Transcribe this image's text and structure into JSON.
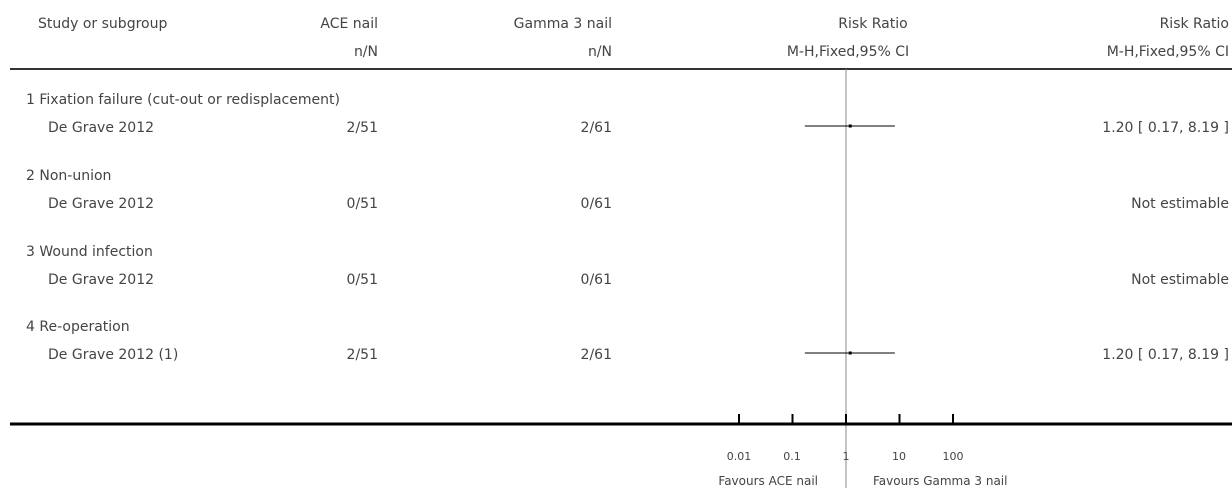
{
  "columns": {
    "study": "Study or subgroup",
    "group1": "ACE nail",
    "group1_sub": "n/N",
    "group2": "Gamma 3 nail",
    "group2_sub": "n/N",
    "plot": "Risk Ratio",
    "plot_sub": "M-H,Fixed,95% CI",
    "effect": "Risk Ratio",
    "effect_sub": "M-H,Fixed,95% CI"
  },
  "chart_data": {
    "type": "forest",
    "xscale": "log",
    "xlim": [
      0.01,
      100
    ],
    "ticks": [
      0.01,
      0.1,
      1,
      10,
      100
    ],
    "tick_labels": [
      "0.01",
      "0.1",
      "1",
      "10",
      "100"
    ],
    "null_value": 1,
    "favours_left": "Favours ACE nail",
    "favours_right": "Favours Gamma 3 nail",
    "subgroups": [
      {
        "label": "1 Fixation failure (cut-out or redisplacement)",
        "studies": [
          {
            "name": "De Grave 2012",
            "g1": "2/51",
            "g2": "2/61",
            "effect_text": "1.20 [ 0.17, 8.19 ]",
            "rr": 1.2,
            "lower": 0.17,
            "upper": 8.19
          }
        ]
      },
      {
        "label": "2 Non-union",
        "studies": [
          {
            "name": "De Grave 2012",
            "g1": "0/51",
            "g2": "0/61",
            "effect_text": "Not estimable",
            "rr": null,
            "lower": null,
            "upper": null
          }
        ]
      },
      {
        "label": "3 Wound infection",
        "studies": [
          {
            "name": "De Grave 2012",
            "g1": "0/51",
            "g2": "0/61",
            "effect_text": "Not estimable",
            "rr": null,
            "lower": null,
            "upper": null
          }
        ]
      },
      {
        "label": "4 Re-operation",
        "studies": [
          {
            "name": "De Grave 2012 (1)",
            "g1": "2/51",
            "g2": "2/61",
            "effect_text": "1.20 [ 0.17, 8.19 ]",
            "rr": 1.2,
            "lower": 0.17,
            "upper": 8.19
          }
        ]
      }
    ]
  }
}
